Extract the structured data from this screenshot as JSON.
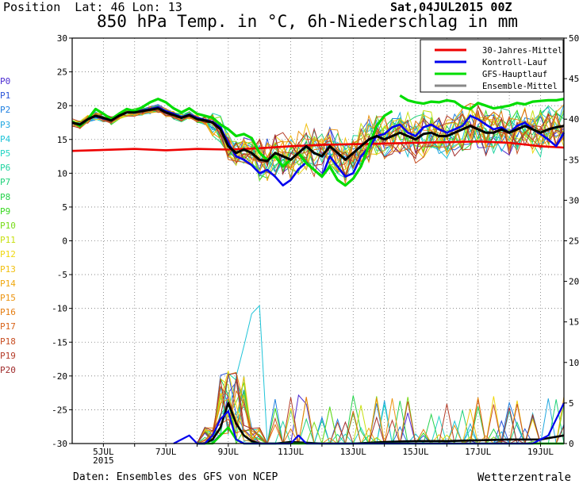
{
  "header": {
    "position_text": "Position  Lat: 46 Lon: 13",
    "title": "850 hPa Temp. in °C, 6h-Niederschlag in mm",
    "run_label": "Sat,04JUL2015 00Z"
  },
  "footer": {
    "source": "Daten: Ensembles des GFS von NCEP",
    "brand": "Wetterzentrale"
  },
  "colors": {
    "red": "#ee0000",
    "blue": "#0000ee",
    "green": "#00dd00",
    "grey": "#888888",
    "black": "#000000"
  },
  "members": [
    {
      "name": "P0",
      "color": "#4b2bd1"
    },
    {
      "name": "P1",
      "color": "#2c56d8"
    },
    {
      "name": "P2",
      "color": "#1f7fe0"
    },
    {
      "name": "P3",
      "color": "#22a8e0"
    },
    {
      "name": "P4",
      "color": "#20c4d8"
    },
    {
      "name": "P5",
      "color": "#22d4c4"
    },
    {
      "name": "P6",
      "color": "#20d4a0"
    },
    {
      "name": "P7",
      "color": "#20d27a"
    },
    {
      "name": "P8",
      "color": "#24d24a"
    },
    {
      "name": "P9",
      "color": "#38d820"
    },
    {
      "name": "P10",
      "color": "#78dc18"
    },
    {
      "name": "P11",
      "color": "#c8e010"
    },
    {
      "name": "P12",
      "color": "#f0d810"
    },
    {
      "name": "P13",
      "color": "#f2c010"
    },
    {
      "name": "P14",
      "color": "#f0a810"
    },
    {
      "name": "P15",
      "color": "#ec9410"
    },
    {
      "name": "P16",
      "color": "#e47c10"
    },
    {
      "name": "P17",
      "color": "#d8641a"
    },
    {
      "name": "P18",
      "color": "#c84e22"
    },
    {
      "name": "P19",
      "color": "#b43c28"
    },
    {
      "name": "P20",
      "color": "#a02c2c"
    }
  ],
  "chart_data": {
    "type": "line",
    "title": "850 hPa Temp. in °C, 6h-Niederschlag in mm",
    "x_labels": [
      {
        "day": 5,
        "label": "5JUL",
        "sub": "2015"
      },
      {
        "day": 7,
        "label": "7JUL"
      },
      {
        "day": 9,
        "label": "9JUL"
      },
      {
        "day": 11,
        "label": "11JUL"
      },
      {
        "day": 13,
        "label": "13JUL"
      },
      {
        "day": 15,
        "label": "15JUL"
      },
      {
        "day": 17,
        "label": "17JUL"
      },
      {
        "day": 19,
        "label": "19JUL"
      }
    ],
    "xlim": [
      4.0,
      19.75
    ],
    "y_left": {
      "min": -30,
      "max": 30,
      "step": 5,
      "unit": "°C"
    },
    "y_right": {
      "min": 0,
      "max": 50,
      "step": 5,
      "unit": "mm"
    },
    "grid": true,
    "legend": {
      "placement": "top-right",
      "items": [
        {
          "label": "30-Jahres-Mittel",
          "color": "#ee0000"
        },
        {
          "label": "Kontroll-Lauf",
          "color": "#0000ee"
        },
        {
          "label": "GFS-Hauptlauf",
          "color": "#00dd00"
        },
        {
          "label": "Ensemble-Mittel",
          "color": "#888888"
        }
      ]
    },
    "series": [
      {
        "name": "30-Jahres-Mittel",
        "color": "#ee0000",
        "width": 2.6,
        "x": [
          4.0,
          6.0,
          7.0,
          8.0,
          9.0,
          10.0,
          11.0,
          12.0,
          13.0,
          14.0,
          15.0,
          16.0,
          17.0,
          18.0,
          19.0,
          19.75
        ],
        "y": [
          13.3,
          13.6,
          13.4,
          13.6,
          13.5,
          13.7,
          14.0,
          14.2,
          14.3,
          14.4,
          14.5,
          14.6,
          14.7,
          14.5,
          14.0,
          13.8
        ]
      },
      {
        "name": "Kontroll-Lauf",
        "color": "#0000ee",
        "width": 2.6,
        "x": [
          4.0,
          4.25,
          4.5,
          4.75,
          5.0,
          5.25,
          5.5,
          5.75,
          6.0,
          6.25,
          6.5,
          6.75,
          7.0,
          7.25,
          7.5,
          7.75,
          8.0,
          8.25,
          8.5,
          8.75,
          9.0,
          9.25,
          9.5,
          9.75,
          10.0,
          10.25,
          10.5,
          10.75,
          11.0,
          11.25,
          11.5,
          11.75,
          12.0,
          12.25,
          12.5,
          12.75,
          13.0,
          13.25,
          13.5,
          13.75,
          14.0,
          14.25,
          14.5,
          14.75,
          15.0,
          15.25,
          15.5,
          15.75,
          16.0,
          16.25,
          16.5,
          16.75,
          17.0,
          17.25,
          17.5,
          17.75,
          18.0,
          18.25,
          18.5,
          18.75,
          19.0,
          19.25,
          19.5,
          19.75
        ],
        "y": [
          17.5,
          17.2,
          18.0,
          18.4,
          18.1,
          17.9,
          18.6,
          19.0,
          19.1,
          19.3,
          19.5,
          19.8,
          19.2,
          18.8,
          18.3,
          18.7,
          18.2,
          17.9,
          17.6,
          16.8,
          14.5,
          12.5,
          12.0,
          11.2,
          10.0,
          10.5,
          9.5,
          8.2,
          9.0,
          10.6,
          11.6,
          10.5,
          9.5,
          12.5,
          11.0,
          9.5,
          10.0,
          12.5,
          13.8,
          15.5,
          15.8,
          16.8,
          17.2,
          16.0,
          15.5,
          16.8,
          17.2,
          16.5,
          16.0,
          16.5,
          17.0,
          18.5,
          18.0,
          17.2,
          16.5,
          16.8,
          16.0,
          17.0,
          17.5,
          16.5,
          15.8,
          15.0,
          14.0,
          16.0
        ]
      },
      {
        "name": "GFS-Hauptlauf",
        "color": "#00dd00",
        "width": 3.2,
        "x": [
          4.0,
          4.25,
          4.5,
          4.75,
          5.0,
          5.25,
          5.5,
          5.75,
          6.0,
          6.25,
          6.5,
          6.75,
          7.0,
          7.25,
          7.5,
          7.75,
          8.0,
          8.25,
          8.5,
          8.75,
          9.0,
          9.25,
          9.5,
          9.75,
          10.0,
          10.25,
          10.5,
          10.75,
          11.0,
          11.25,
          11.5,
          11.75,
          12.0,
          12.25,
          12.5,
          12.75,
          13.0,
          13.25,
          13.5,
          13.75,
          14.0,
          14.25
        ],
        "y": [
          17.6,
          17.0,
          18.0,
          19.5,
          18.8,
          18.0,
          18.8,
          19.5,
          19.2,
          19.8,
          20.5,
          21.0,
          20.5,
          19.6,
          19.0,
          19.6,
          18.8,
          18.5,
          18.2,
          17.2,
          16.5,
          15.5,
          15.8,
          15.2,
          13.0,
          12.0,
          12.5,
          11.0,
          12.0,
          13.0,
          11.5,
          10.5,
          9.5,
          11.0,
          9.0,
          8.2,
          9.2,
          11.0,
          14.0,
          17.0,
          18.5,
          19.2
        ]
      },
      {
        "name": "GFS-Hauptlauf-2",
        "color": "#00dd00",
        "width": 3.2,
        "x": [
          14.5,
          14.75,
          15.0,
          15.25,
          15.5,
          15.75,
          16.0,
          16.25,
          16.5,
          16.75,
          17.0,
          17.25,
          17.5,
          17.75,
          18.0,
          18.25,
          18.5,
          18.75,
          19.0,
          19.25,
          19.5,
          19.75
        ],
        "y": [
          21.5,
          20.8,
          20.5,
          20.3,
          20.6,
          20.5,
          20.8,
          20.6,
          19.8,
          19.5,
          20.4,
          20.0,
          19.6,
          19.8,
          20.0,
          20.4,
          20.2,
          20.6,
          20.7,
          20.8,
          20.8,
          21.0
        ]
      },
      {
        "name": "Ensemble-Mittel",
        "color": "#000000",
        "width": 3.0,
        "x": [
          4.0,
          4.25,
          4.5,
          4.75,
          5.0,
          5.25,
          5.5,
          5.75,
          6.0,
          6.25,
          6.5,
          6.75,
          7.0,
          7.25,
          7.5,
          7.75,
          8.0,
          8.25,
          8.5,
          8.75,
          9.0,
          9.25,
          9.5,
          9.75,
          10.0,
          10.25,
          10.5,
          10.75,
          11.0,
          11.25,
          11.5,
          11.75,
          12.0,
          12.25,
          12.5,
          12.75,
          13.0,
          13.25,
          13.5,
          13.75,
          14.0,
          14.25,
          14.5,
          14.75,
          15.0,
          15.25,
          15.5,
          15.75,
          16.0,
          16.25,
          16.5,
          16.75,
          17.0,
          17.25,
          17.5,
          17.75,
          18.0,
          18.25,
          18.5,
          18.75,
          19.0,
          19.25,
          19.5,
          19.75
        ],
        "y": [
          17.5,
          17.2,
          18.0,
          18.5,
          18.2,
          17.8,
          18.5,
          19.0,
          19.0,
          19.2,
          19.4,
          19.6,
          19.0,
          18.6,
          18.2,
          18.6,
          18.0,
          17.8,
          17.5,
          16.5,
          14.0,
          13.0,
          13.5,
          13.0,
          12.0,
          11.8,
          13.0,
          12.5,
          12.0,
          13.0,
          14.0,
          13.0,
          12.5,
          14.0,
          13.0,
          12.0,
          13.0,
          14.0,
          15.0,
          15.5,
          15.0,
          15.5,
          16.0,
          15.5,
          15.0,
          15.8,
          16.0,
          15.5,
          15.5,
          16.0,
          16.5,
          17.0,
          16.5,
          16.0,
          16.0,
          16.5,
          16.0,
          16.5,
          17.0,
          16.5,
          16.0,
          16.5,
          16.8,
          17.0
        ]
      }
    ],
    "ensemble_spread": {
      "upper_mm_max": 19.5,
      "lower": 8.5
    },
    "precip_series": [
      {
        "name": "Ensemble-Mittel-precip",
        "color": "#000000",
        "width": 2.6,
        "x": [
          8.0,
          8.25,
          8.5,
          8.75,
          9.0,
          9.25,
          9.5,
          9.75,
          10.0,
          10.25,
          10.5,
          11.0,
          12.0,
          13.0,
          14.0,
          15.0,
          16.0,
          17.0,
          18.0,
          19.0,
          19.75
        ],
        "y": [
          0.0,
          0.0,
          0.5,
          2.0,
          5.0,
          2.5,
          1.0,
          0.3,
          0.0,
          0.0,
          0.0,
          0.2,
          0.0,
          0.0,
          0.2,
          0.3,
          0.3,
          0.4,
          0.5,
          0.5,
          1.0
        ]
      },
      {
        "name": "GFS-Hauptlauf-precip",
        "color": "#00dd00",
        "width": 2.6,
        "x": [
          8.0,
          8.5,
          8.75,
          9.0,
          9.25,
          9.5,
          9.75,
          10.0,
          14.0,
          15.0,
          16.0,
          17.0,
          18.0,
          19.0,
          19.75
        ],
        "y": [
          0.0,
          0.0,
          1.0,
          2.0,
          0.5,
          0.0,
          0.0,
          0.0,
          0.0,
          0.0,
          0.0,
          0.0,
          0.0,
          0.0,
          0.0
        ]
      },
      {
        "name": "Kontroll-Lauf-precip",
        "color": "#0000ee",
        "width": 2.2,
        "x": [
          7.25,
          7.5,
          7.75,
          8.0,
          8.25,
          8.5,
          8.75,
          9.0,
          9.25,
          9.5,
          11.0,
          11.25,
          11.5,
          12.0,
          18.5,
          18.75,
          19.0,
          19.25,
          19.5,
          19.75
        ],
        "y": [
          0.0,
          0.5,
          1.0,
          0.0,
          0.0,
          1.0,
          3.0,
          4.0,
          0.5,
          0.0,
          0.0,
          1.0,
          0.0,
          0.0,
          0.0,
          0.0,
          0.5,
          1.0,
          3.0,
          5.0
        ]
      }
    ]
  }
}
